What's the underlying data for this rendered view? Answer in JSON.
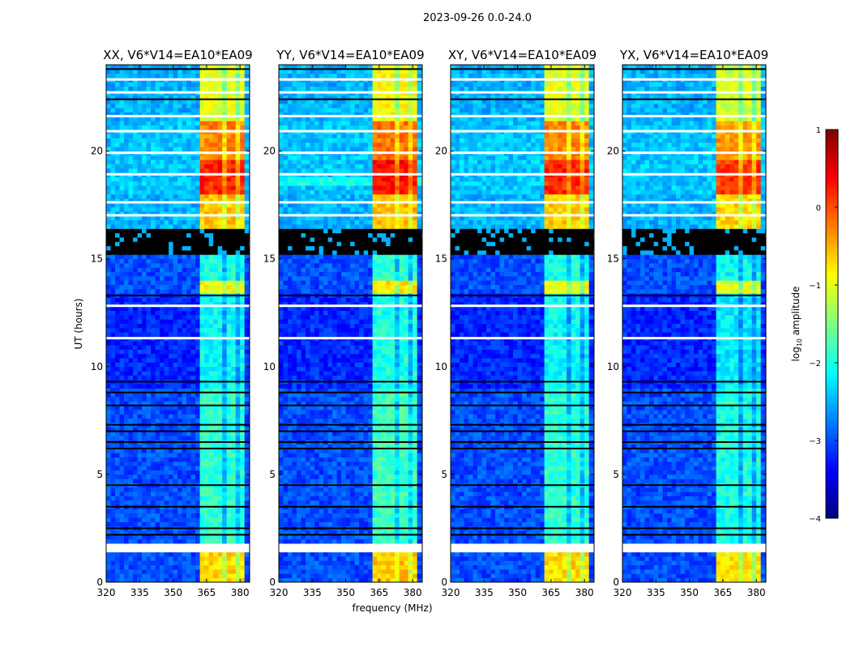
{
  "chart_data": {
    "type": "heatmap",
    "title": "2023-09-26 0.0-24.0",
    "xlabel": "frequency (MHz)",
    "ylabel": "UT (hours)",
    "xlim": [
      320,
      384.3
    ],
    "ylim": [
      0,
      24
    ],
    "xticks": [
      320,
      335,
      350,
      365,
      380
    ],
    "yticks": [
      0,
      5,
      10,
      15,
      20
    ],
    "colorbar": {
      "label_prefix": "log",
      "label_sub": "10",
      "label_suffix": " amplitude",
      "range": [
        -4,
        1
      ],
      "ticks": [
        1,
        0,
        -1,
        -2,
        -3,
        -4
      ],
      "tick_labels": [
        "1",
        "0",
        "−1",
        "−2",
        "−3",
        "−4"
      ],
      "colormap": "jet"
    },
    "panels": [
      {
        "title": "XX, V6*V14=EA10*EA09",
        "band_offset": 0
      },
      {
        "title": "YY, V6*V14=EA10*EA09",
        "band_offset": 0.1,
        "extra_stripe": [
          18.5,
          18.75,
          -2.0
        ]
      },
      {
        "title": "XY, V6*V14=EA10*EA09",
        "band_offset": 0
      },
      {
        "title": "YX, V6*V14=EA10*EA09",
        "band_offset": -0.1
      }
    ],
    "rfi_band_mhz": [
      362,
      382
    ],
    "time_segments": [
      {
        "t": [
          0,
          1.4
        ],
        "background": -3.0,
        "band": -0.7
      },
      {
        "t": [
          1.4,
          1.8
        ],
        "flag": "white"
      },
      {
        "t": [
          1.8,
          9.0
        ],
        "background": -3.0,
        "band": -1.9
      },
      {
        "t": [
          9.0,
          13.5
        ],
        "background": -3.2,
        "band": -2.1
      },
      {
        "t": [
          13.5,
          14.0
        ],
        "background": -3.0,
        "band": -0.9
      },
      {
        "t": [
          14.0,
          15.3
        ],
        "background": -3.0,
        "band": -2.0
      },
      {
        "t": [
          15.3,
          16.4
        ],
        "flag": "black"
      },
      {
        "t": [
          16.4,
          18.0
        ],
        "background": -2.5,
        "band": -0.6
      },
      {
        "t": [
          18.0,
          19.6
        ],
        "background": -2.4,
        "band": 0.2
      },
      {
        "t": [
          19.6,
          21.5
        ],
        "background": -2.4,
        "band": -0.3
      },
      {
        "t": [
          21.5,
          24.0
        ],
        "background": -2.5,
        "band": -1.0
      }
    ],
    "white_flag_times": [
      11.3,
      12.8,
      17.0,
      17.6,
      18.9,
      19.9,
      20.9,
      21.6,
      22.7,
      23.3
    ],
    "black_flag_times": [
      2.2,
      2.5,
      3.5,
      4.5,
      6.2,
      6.5,
      7.0,
      7.3,
      8.2,
      8.8,
      9.3,
      13.3,
      22.4,
      23.8
    ]
  }
}
